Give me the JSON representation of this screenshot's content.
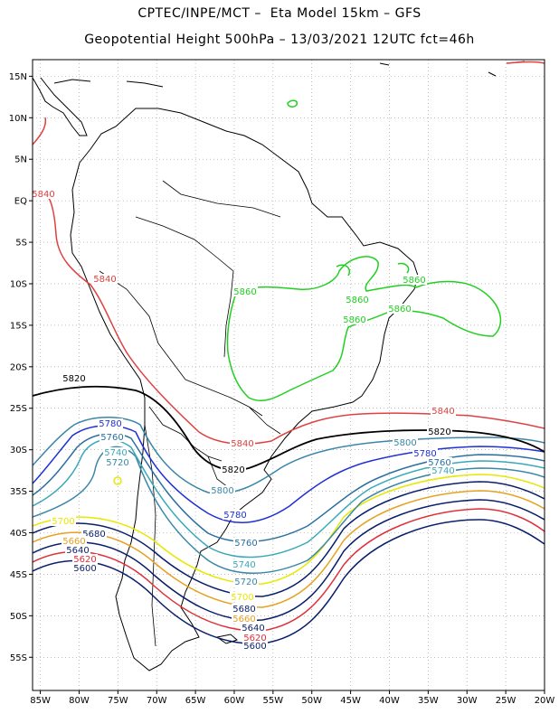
{
  "header": {
    "title_line1": "CPTEC/INPE/MCT –  Eta Model 15km – GFS",
    "title_line2": "Geopotential Height 500hPa – 13/03/2021 12UTC fct=46h"
  },
  "map": {
    "lon_range": [
      -86,
      -20
    ],
    "lat_range": [
      -59,
      17
    ],
    "lat_ticks": [
      {
        "value": 15,
        "label": "15N"
      },
      {
        "value": 10,
        "label": "10N"
      },
      {
        "value": 5,
        "label": "5N"
      },
      {
        "value": 0,
        "label": "EQ"
      },
      {
        "value": -5,
        "label": "5S"
      },
      {
        "value": -10,
        "label": "10S"
      },
      {
        "value": -15,
        "label": "15S"
      },
      {
        "value": -20,
        "label": "20S"
      },
      {
        "value": -25,
        "label": "25S"
      },
      {
        "value": -30,
        "label": "30S"
      },
      {
        "value": -35,
        "label": "35S"
      },
      {
        "value": -40,
        "label": "40S"
      },
      {
        "value": -45,
        "label": "45S"
      },
      {
        "value": -50,
        "label": "50S"
      },
      {
        "value": -55,
        "label": "55S"
      }
    ],
    "lon_ticks": [
      {
        "value": -85,
        "label": "85W"
      },
      {
        "value": -80,
        "label": "80W"
      },
      {
        "value": -75,
        "label": "75W"
      },
      {
        "value": -70,
        "label": "70W"
      },
      {
        "value": -65,
        "label": "65W"
      },
      {
        "value": -60,
        "label": "60W"
      },
      {
        "value": -55,
        "label": "55W"
      },
      {
        "value": -50,
        "label": "50W"
      },
      {
        "value": -45,
        "label": "45W"
      },
      {
        "value": -40,
        "label": "40W"
      },
      {
        "value": -35,
        "label": "35W"
      },
      {
        "value": -30,
        "label": "30W"
      },
      {
        "value": -25,
        "label": "25W"
      },
      {
        "value": -20,
        "label": "20W"
      }
    ],
    "contours": [
      {
        "level": "5600",
        "color": "#0a1f6b"
      },
      {
        "level": "5620",
        "color": "#e0303a"
      },
      {
        "level": "5640",
        "color": "#0a1f6b"
      },
      {
        "level": "5660",
        "color": "#e8a020"
      },
      {
        "level": "5680",
        "color": "#0a1f6b"
      },
      {
        "level": "5700",
        "color": "#e8e800"
      },
      {
        "level": "5720",
        "color": "#3a87a8"
      },
      {
        "level": "5740",
        "color": "#3aa8b8"
      },
      {
        "level": "5760",
        "color": "#2a6fa0"
      },
      {
        "level": "5780",
        "color": "#2030d8"
      },
      {
        "level": "5800",
        "color": "#3a87a8"
      },
      {
        "level": "5820",
        "color": "#000000"
      },
      {
        "level": "5840",
        "color": "#e04040"
      },
      {
        "level": "5860",
        "color": "#20d020"
      }
    ]
  }
}
